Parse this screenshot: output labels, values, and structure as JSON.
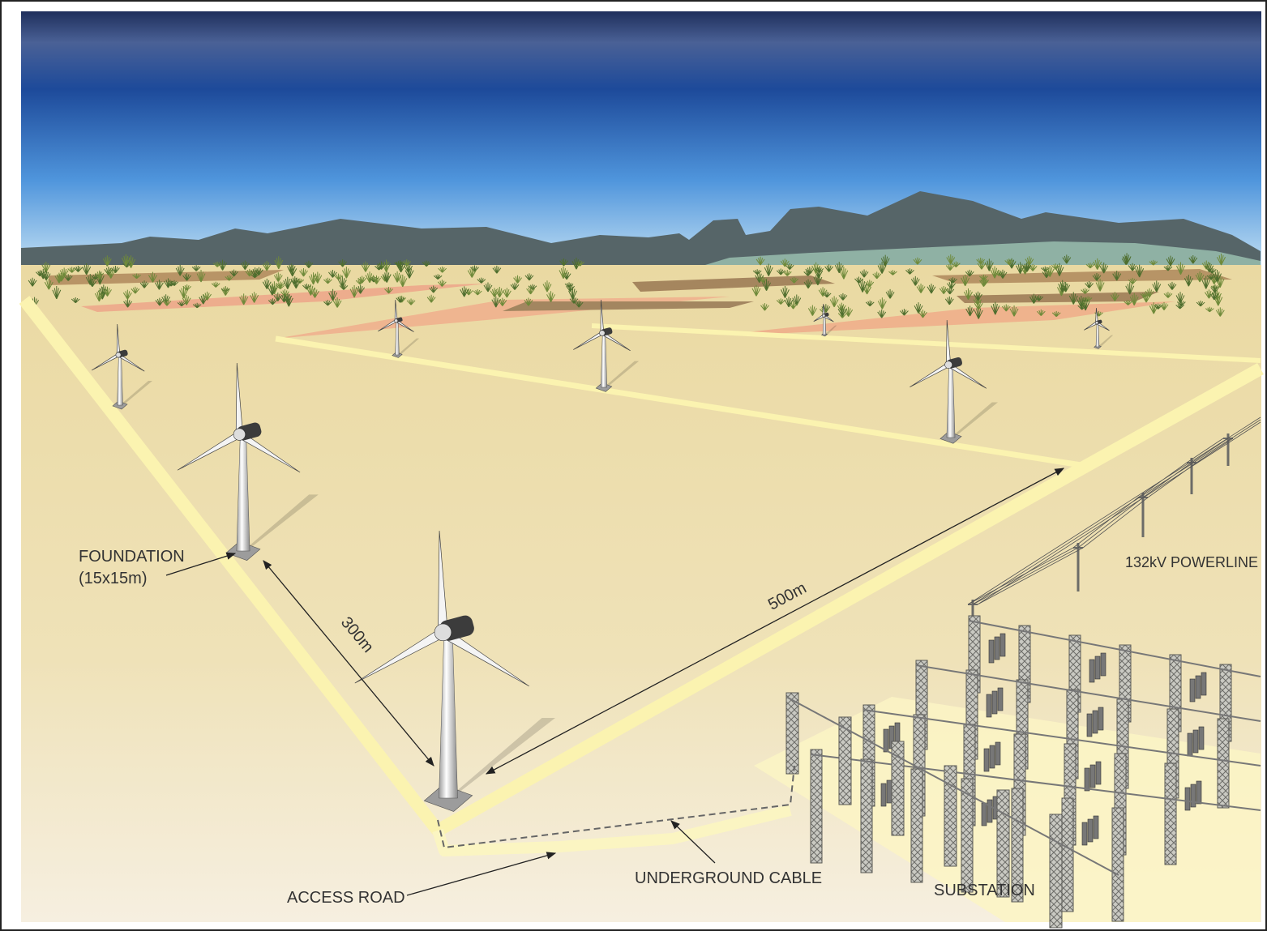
{
  "annotations": {
    "foundation": {
      "lines": [
        "FOUNDATION",
        "(15x15m)"
      ]
    },
    "distance_300": "300m",
    "distance_500": "500m",
    "powerline": "132kV POWERLINE",
    "access_road": "ACCESS ROAD",
    "underground_cable": "UNDERGROUND CABLE",
    "substation": "SUBSTATION"
  }
}
